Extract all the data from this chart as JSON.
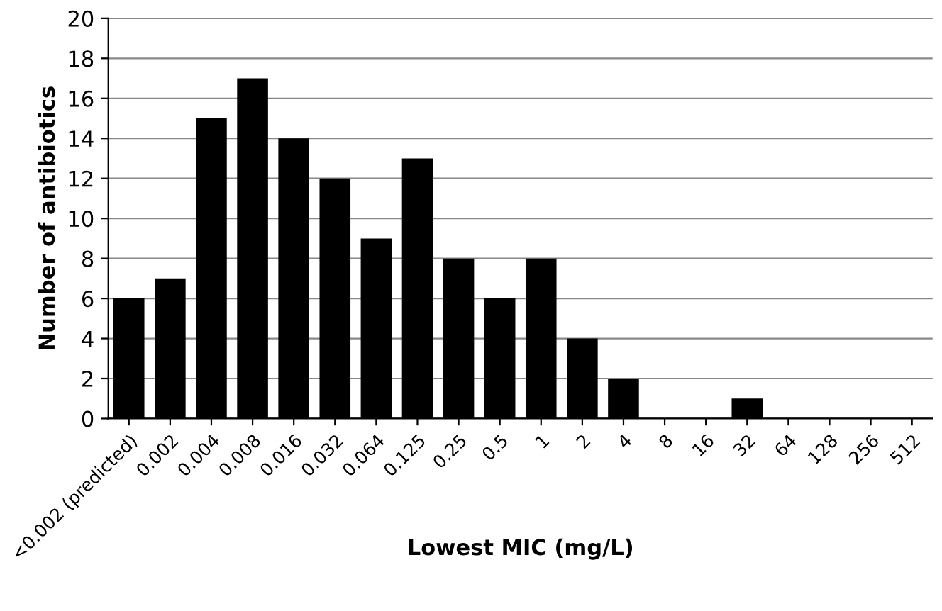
{
  "chart_data": {
    "type": "bar",
    "xlabel": "Lowest MIC (mg/L)",
    "ylabel": "Number of antibiotics",
    "categories": [
      "<0.002 (predicted)",
      "0.002",
      "0.004",
      "0.008",
      "0.016",
      "0.032",
      "0.064",
      "0.125",
      "0.25",
      "0.5",
      "1",
      "2",
      "4",
      "8",
      "16",
      "32",
      "64",
      "128",
      "256",
      "512"
    ],
    "values": [
      6,
      7,
      15,
      17,
      14,
      12,
      9,
      13,
      8,
      6,
      8,
      4,
      2,
      0,
      0,
      1,
      0,
      0,
      0,
      0
    ],
    "color": "#000000",
    "ylim": [
      0,
      20
    ],
    "yticks": [
      0,
      2,
      4,
      6,
      8,
      10,
      12,
      14,
      16,
      18,
      20
    ],
    "grid": "y"
  }
}
